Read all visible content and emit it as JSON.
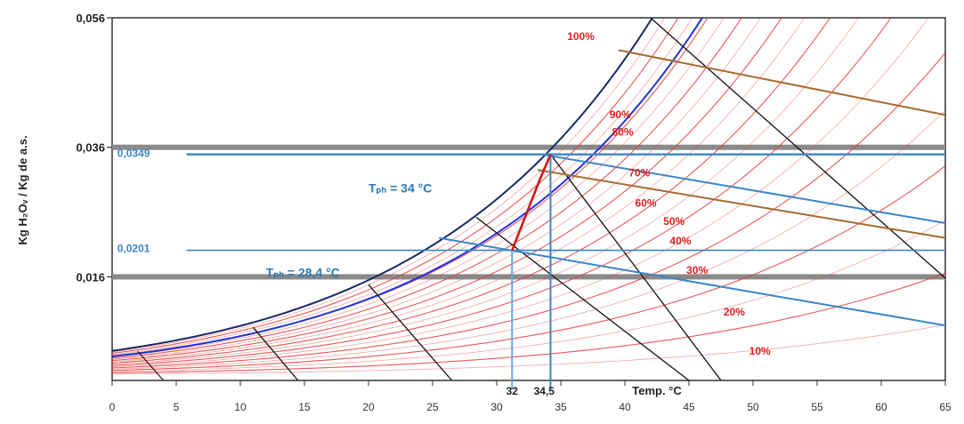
{
  "chart_data": {
    "type": "line",
    "title": "",
    "xlabel": "Temp. °C",
    "ylabel": "Kg H₂Oᵥ / Kg de a.s.",
    "xlim": [
      0,
      65
    ],
    "ylim": [
      0,
      0.056
    ],
    "x_ticks": [
      0,
      5,
      10,
      15,
      20,
      25,
      30,
      35,
      40,
      45,
      50,
      55,
      60,
      65
    ],
    "y_ticks": [
      {
        "value": 0.016,
        "label": "0,016"
      },
      {
        "value": 0.036,
        "label": "0,036"
      },
      {
        "value": 0.056,
        "label": "0,056"
      }
    ],
    "humidity_labels": [
      {
        "text": "100%",
        "x": 35.5,
        "y": 0.0526,
        "color": "#e02020"
      },
      {
        "text": "90%",
        "x": 38.8,
        "y": 0.0405,
        "color": "#e02020"
      },
      {
        "text": "80%",
        "x": 39.0,
        "y": 0.0378,
        "color": "#e02020"
      },
      {
        "text": "70%",
        "x": 40.3,
        "y": 0.0315,
        "color": "#e02020"
      },
      {
        "text": "60%",
        "x": 40.8,
        "y": 0.0268,
        "color": "#e02020"
      },
      {
        "text": "50%",
        "x": 43.0,
        "y": 0.024,
        "color": "#e02020"
      },
      {
        "text": "40%",
        "x": 43.5,
        "y": 0.021,
        "color": "#e02020"
      },
      {
        "text": "30%",
        "x": 44.8,
        "y": 0.0165,
        "color": "#e02020"
      },
      {
        "text": "20%",
        "x": 47.7,
        "y": 0.01,
        "color": "#e02020"
      },
      {
        "text": "10%",
        "x": 49.7,
        "y": 0.004,
        "color": "#e02020"
      }
    ],
    "annotations": [
      {
        "text": "0,0349",
        "x": 0.4,
        "y": 0.0345,
        "color": "#3a86c8"
      },
      {
        "text": "0,0201",
        "x": 0.4,
        "y": 0.0198,
        "color": "#3a86c8"
      },
      {
        "text": "Tₚₕ = 34 °C",
        "x": 20.0,
        "y": 0.029,
        "color": "#2a7ab8"
      },
      {
        "text": "Tₚₕ = 28,4 °C",
        "x": 12.0,
        "y": 0.016,
        "color": "#2a7ab8"
      },
      {
        "text": "32",
        "x": 31.2,
        "y": -0.0028,
        "color": "#222"
      },
      {
        "text": "34,5",
        "x": 33.7,
        "y": -0.0028,
        "color": "#222"
      }
    ],
    "highlight_values": {
      "humidity_high": 0.0349,
      "humidity_low": 0.0201,
      "temp_a": 32,
      "temp_b": 34.5
    },
    "process_line": {
      "color": "#cc1a1a",
      "points": [
        [
          31.2,
          0.0201
        ],
        [
          33.4,
          0.0312
        ],
        [
          34.2,
          0.0349
        ]
      ]
    },
    "colors": {
      "rh_curves": "#e63a3a",
      "saturation": "#1a2a66",
      "blue_curve": "#2233dd",
      "wet_bulb": "#111111",
      "enthalpy_brown": "#a86a30",
      "enthalpy_blue": "#3a86c8",
      "gray_band": "#8a8a8a"
    },
    "grid": false
  }
}
